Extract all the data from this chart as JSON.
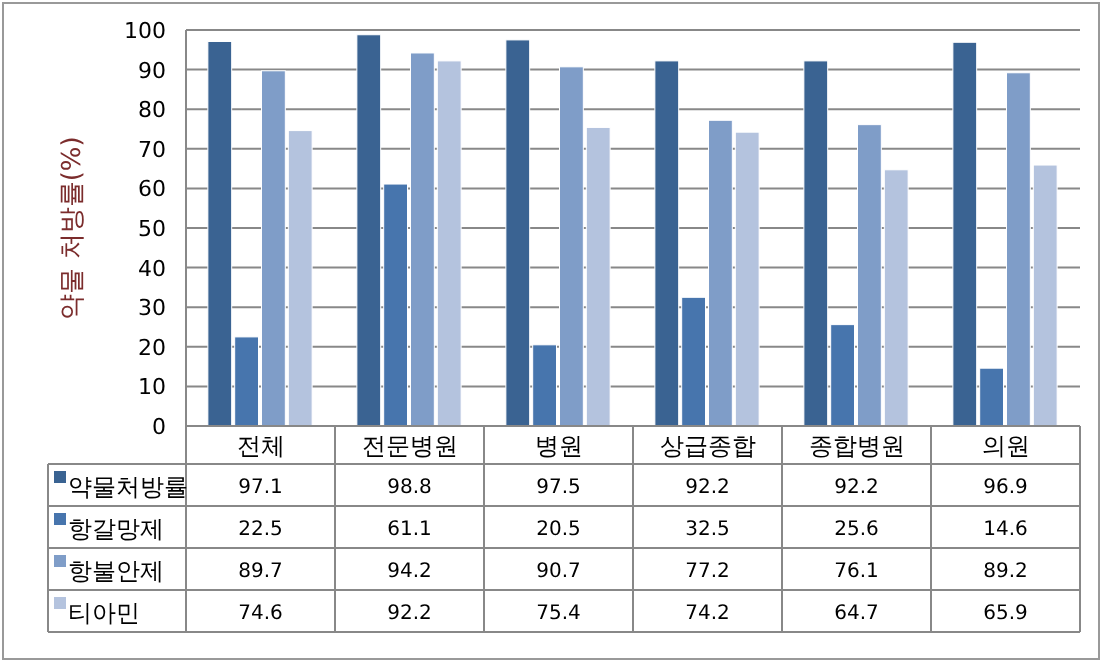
{
  "chart_data": {
    "type": "bar",
    "ylabel": "약물 처방률(%)",
    "categories": [
      "전체",
      "전문병원",
      "병원",
      "상급종합",
      "종합병원",
      "의원"
    ],
    "series": [
      {
        "name": "약물처방률",
        "color": "#3a6392",
        "values": [
          97.1,
          98.8,
          97.5,
          92.2,
          92.2,
          96.9
        ]
      },
      {
        "name": "항갈망제",
        "color": "#4775ad",
        "values": [
          22.5,
          61.1,
          20.5,
          32.5,
          25.6,
          14.6
        ]
      },
      {
        "name": "항불안제",
        "color": "#7f9dc8",
        "values": [
          89.7,
          94.2,
          90.7,
          77.2,
          76.1,
          89.2
        ]
      },
      {
        "name": "티아민",
        "color": "#b4c3de",
        "values": [
          74.6,
          92.2,
          75.4,
          74.2,
          64.7,
          65.9
        ]
      }
    ],
    "ylim": [
      0,
      100
    ],
    "yticks": [
      0,
      10,
      20,
      30,
      40,
      50,
      60,
      70,
      80,
      90,
      100
    ],
    "grid": "y",
    "legend": "bottom left",
    "data_labels": true
  }
}
